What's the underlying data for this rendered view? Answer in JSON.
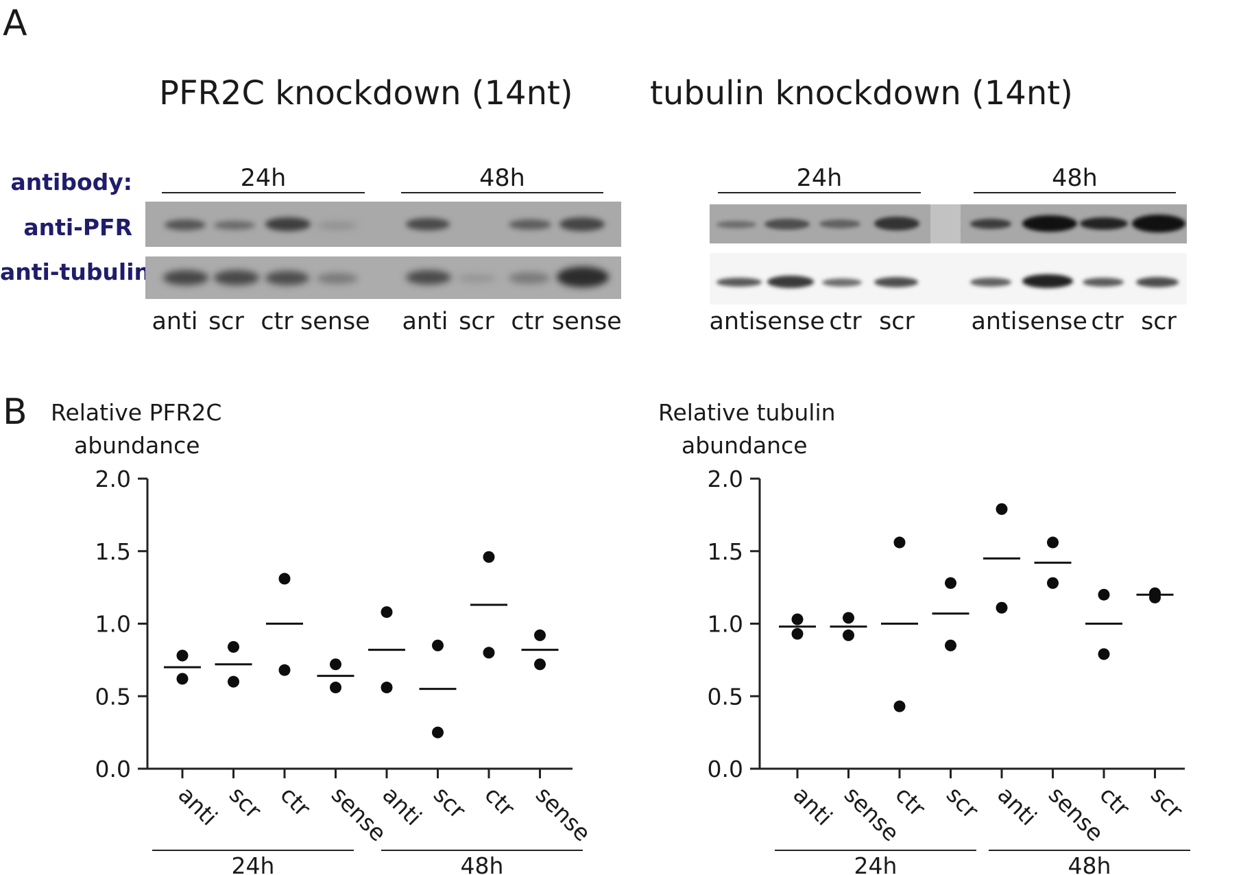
{
  "panel_a": {
    "letter": "A",
    "antibody_header": "antibody:",
    "antibodies": [
      "anti-PFR",
      "anti-tubulin"
    ],
    "blots": [
      {
        "title": "PFR2C knockdown (14nt)",
        "timepoints": [
          "24h",
          "48h"
        ],
        "lanes": [
          "anti",
          "scr",
          "ctr",
          "sense",
          "anti",
          "scr",
          "ctr",
          "sense"
        ]
      },
      {
        "title": "tubulin knockdown (14nt)",
        "timepoints": [
          "24h",
          "48h"
        ],
        "lanes": [
          "anti",
          "sense",
          "ctr",
          "scr",
          "anti",
          "sense",
          "ctr",
          "scr"
        ]
      }
    ]
  },
  "panel_b": {
    "letter": "B"
  },
  "chart_data": [
    {
      "type": "scatter",
      "ylabel": "Relative PFR2C abundance",
      "ylabel_lines": [
        "Relative PFR2C",
        "abundance"
      ],
      "ylim": [
        0,
        2
      ],
      "yticks": [
        "0.0",
        "0.5",
        "1.0",
        "1.5",
        "2.0"
      ],
      "categories": [
        "anti",
        "scr",
        "ctr",
        "sense",
        "anti",
        "scr",
        "ctr",
        "sense"
      ],
      "groups": [
        {
          "label": "24h",
          "count": 4
        },
        {
          "label": "48h",
          "count": 4
        }
      ],
      "points": [
        [
          0.78,
          0.62
        ],
        [
          0.84,
          0.6
        ],
        [
          1.31,
          0.68
        ],
        [
          0.72,
          0.56
        ],
        [
          1.08,
          0.56
        ],
        [
          0.85,
          0.25
        ],
        [
          1.46,
          0.8
        ],
        [
          0.92,
          0.72
        ]
      ],
      "means": [
        0.7,
        0.72,
        1.0,
        0.64,
        0.82,
        0.55,
        1.13,
        0.82
      ],
      "grid": false
    },
    {
      "type": "scatter",
      "ylabel": "Relative tubulin abundance",
      "ylabel_lines": [
        "Relative tubulin",
        "abundance"
      ],
      "ylim": [
        0,
        2
      ],
      "yticks": [
        "0.0",
        "0.5",
        "1.0",
        "1.5",
        "2.0"
      ],
      "categories": [
        "anti",
        "sense",
        "ctr",
        "scr",
        "anti",
        "sense",
        "ctr",
        "scr"
      ],
      "groups": [
        {
          "label": "24h",
          "count": 4
        },
        {
          "label": "48h",
          "count": 4
        }
      ],
      "points": [
        [
          1.03,
          0.93
        ],
        [
          1.04,
          0.92
        ],
        [
          1.56,
          0.43
        ],
        [
          1.28,
          0.85
        ],
        [
          1.79,
          1.11
        ],
        [
          1.56,
          1.28
        ],
        [
          1.2,
          0.79
        ],
        [
          1.18,
          1.21
        ]
      ],
      "means": [
        0.98,
        0.98,
        1.0,
        1.07,
        1.45,
        1.42,
        1.0,
        1.2
      ],
      "grid": false
    }
  ]
}
